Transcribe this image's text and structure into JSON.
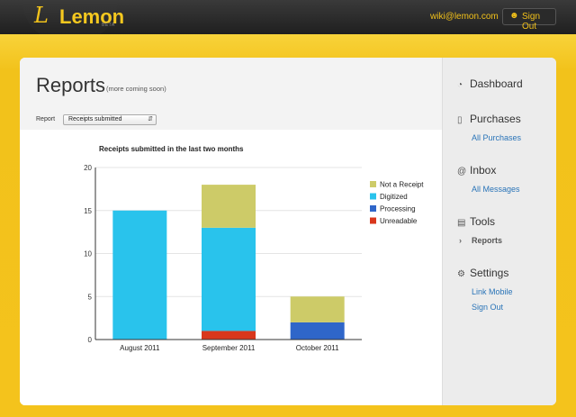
{
  "brand": {
    "name": "Lemon",
    "mark": "L",
    "tag": "BETA"
  },
  "topbar": {
    "email": "wiki@lemon.com",
    "signout_label": "Sign Out"
  },
  "page": {
    "title": "Reports",
    "subtitle": "(more coming soon)"
  },
  "report_filter": {
    "label": "Report",
    "selected": "Receipts submitted"
  },
  "sidebar": {
    "dashboard": "Dashboard",
    "purchases": "Purchases",
    "all_purchases": "All Purchases",
    "inbox": "Inbox",
    "all_messages": "All Messages",
    "tools": "Tools",
    "reports": "Reports",
    "settings": "Settings",
    "link_mobile": "Link Mobile",
    "sign_out": "Sign Out"
  },
  "chart_data": {
    "type": "bar",
    "stacked": true,
    "title": "Receipts submitted in the last two months",
    "categories": [
      "August 2011",
      "September 2011",
      "October 2011"
    ],
    "series": [
      {
        "name": "Unreadable",
        "color": "#d9371c",
        "values": [
          0,
          1,
          0
        ]
      },
      {
        "name": "Processing",
        "color": "#2f66c9",
        "values": [
          0,
          0,
          2
        ]
      },
      {
        "name": "Digitized",
        "color": "#29c3ec",
        "values": [
          15,
          12,
          0
        ]
      },
      {
        "name": "Not a Receipt",
        "color": "#cdcb68",
        "values": [
          0,
          5,
          3
        ]
      }
    ],
    "legend_order": [
      "Not a Receipt",
      "Digitized",
      "Processing",
      "Unreadable"
    ],
    "ylim": [
      0,
      20
    ],
    "yticks": [
      0,
      5,
      10,
      15,
      20
    ],
    "legend": "right"
  }
}
